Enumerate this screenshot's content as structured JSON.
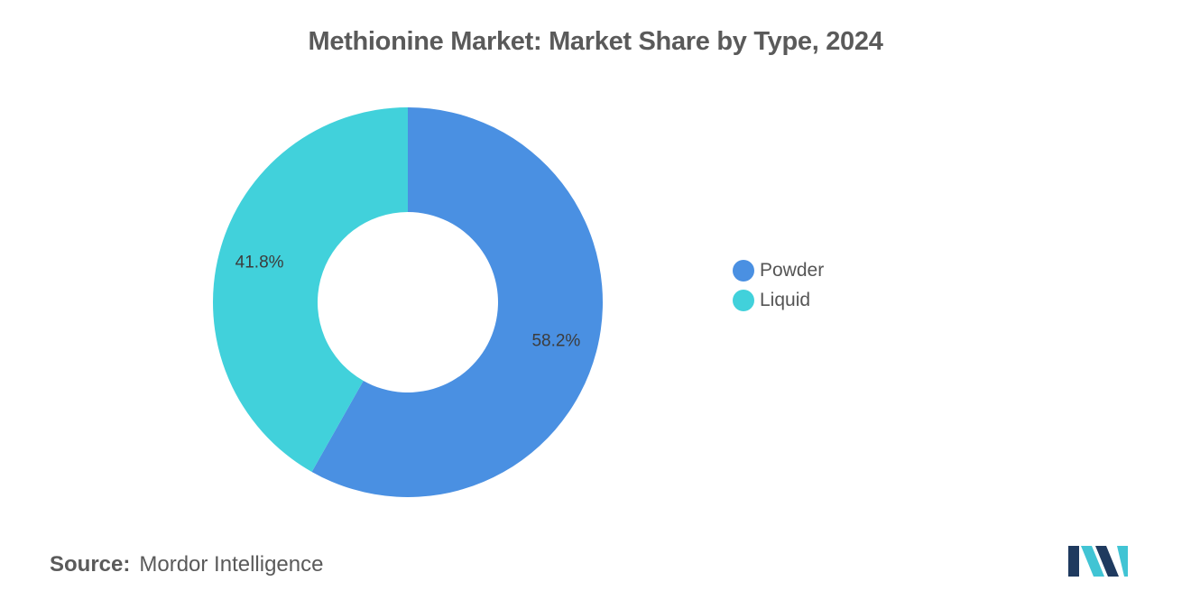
{
  "title": "Methionine Market: Market Share by Type, 2024",
  "chart_data": {
    "type": "pie",
    "variant": "donut",
    "title": "Methionine Market: Market Share by Type, 2024",
    "slices": [
      {
        "name": "Powder",
        "value": 58.2,
        "label": "58.2%",
        "color": "#4a90e2"
      },
      {
        "name": "Liquid",
        "value": 41.8,
        "label": "41.8%",
        "color": "#41d1db"
      }
    ],
    "start": "top",
    "direction": "clockwise",
    "legend": {
      "position": "right"
    }
  },
  "legend": {
    "items": [
      {
        "label": "Powder",
        "color": "#4a90e2"
      },
      {
        "label": "Liquid",
        "color": "#41d1db"
      }
    ]
  },
  "source": {
    "key": "Source:",
    "value": "Mordor Intelligence"
  },
  "logo": {
    "icon": "mordor-intelligence-logo-icon",
    "colors": [
      "#1f3a5f",
      "#41c4d4"
    ]
  }
}
